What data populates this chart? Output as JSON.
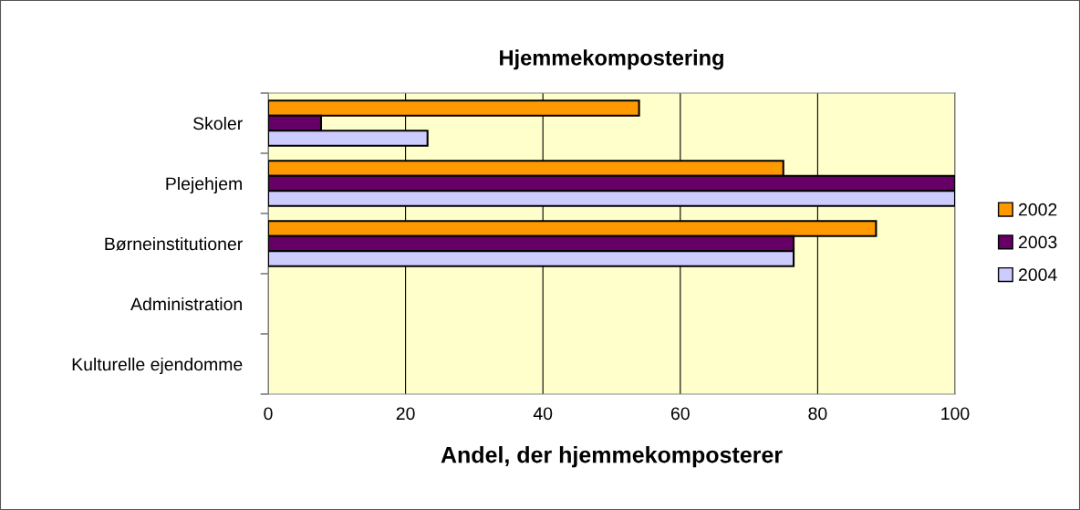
{
  "chart_data": {
    "type": "bar",
    "orientation": "horizontal",
    "title": "Hjemmekompostering",
    "xlabel": "Andel, der hjemmekomposterer",
    "categories": [
      "Skoler",
      "Plejehjem",
      "Børneinstitutioner",
      "Administration",
      "Kulturelle ejendomme"
    ],
    "series": [
      {
        "name": "2002",
        "color": "#ff9900",
        "values": [
          54,
          75,
          88.5,
          null,
          null
        ]
      },
      {
        "name": "2003",
        "color": "#660066",
        "values": [
          7.7,
          100,
          76.5,
          null,
          null
        ]
      },
      {
        "name": "2004",
        "color": "#ccccff",
        "values": [
          23.2,
          100,
          76.5,
          null,
          null
        ]
      }
    ],
    "xlim": [
      0,
      100
    ],
    "xticks": [
      0,
      20,
      40,
      60,
      80,
      100
    ],
    "grid": "x",
    "legend": "right"
  }
}
